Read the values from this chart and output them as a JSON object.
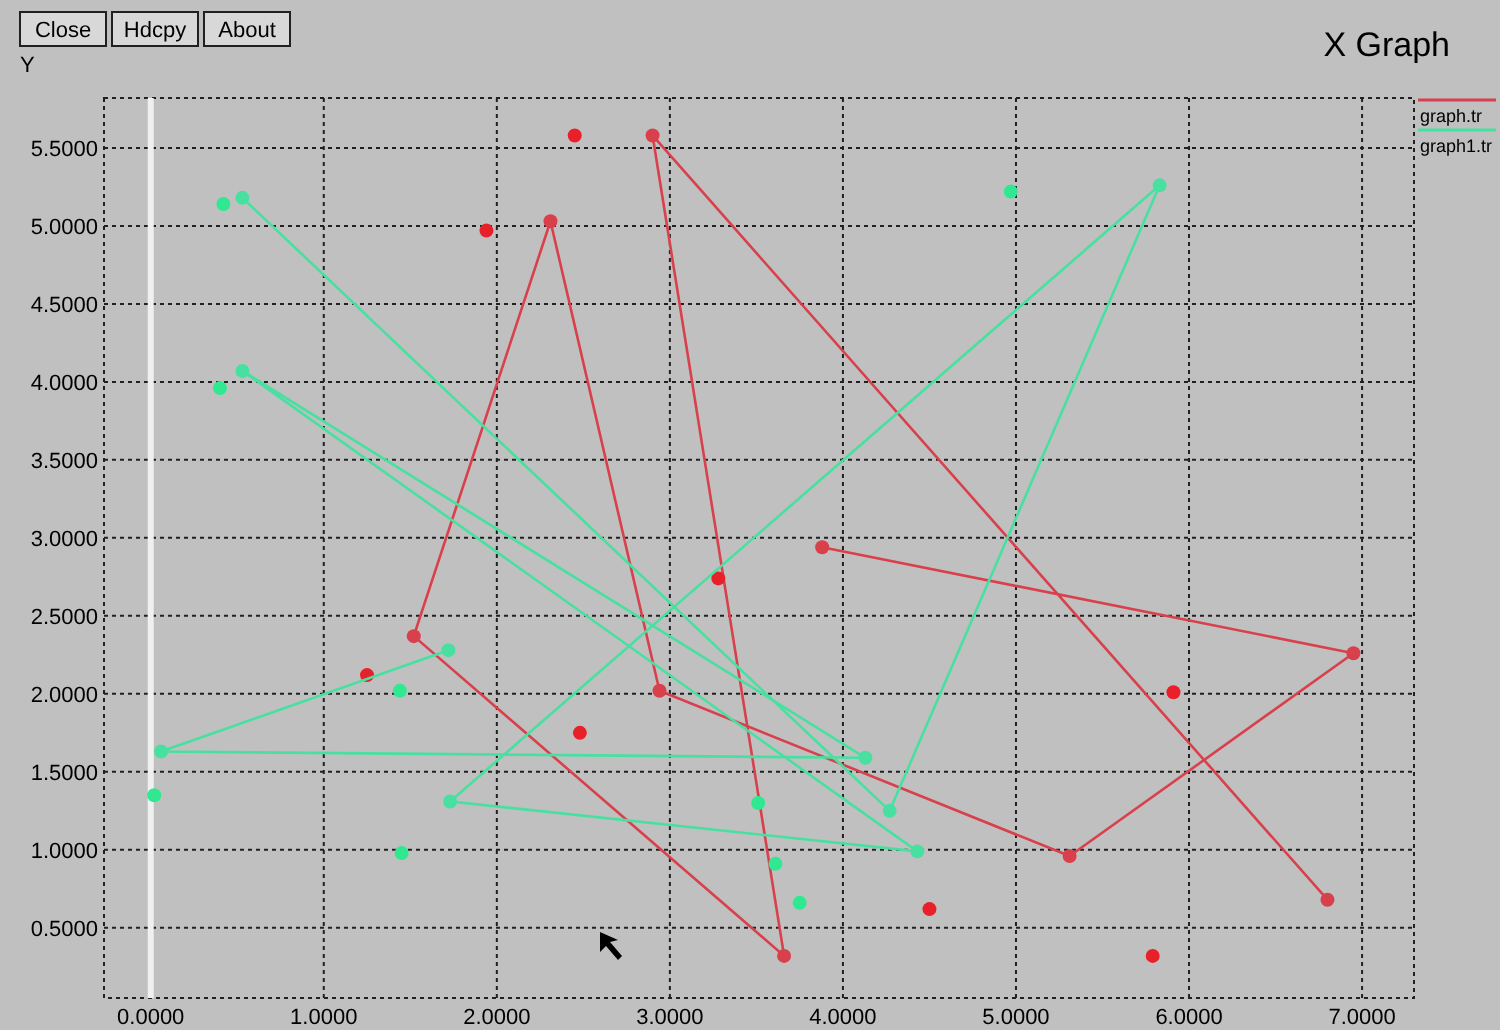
{
  "chart_data": {
    "type": "line",
    "title": "X Graph",
    "ylabel": "Y",
    "annotations": [
      "Close",
      "Hdcpy",
      "About"
    ],
    "xlim": [
      -0.27,
      7.3
    ],
    "ylim": [
      0.05,
      5.82
    ],
    "xticks": [
      {
        "value": 0,
        "label": "0.0000"
      },
      {
        "value": 1,
        "label": "1.0000"
      },
      {
        "value": 2,
        "label": "2.0000"
      },
      {
        "value": 3,
        "label": "3.0000"
      },
      {
        "value": 4,
        "label": "4.0000"
      },
      {
        "value": 5,
        "label": "5.0000"
      },
      {
        "value": 6,
        "label": "6.0000"
      },
      {
        "value": 7,
        "label": "7.0000"
      }
    ],
    "yticks": [
      {
        "value": 0.5,
        "label": "0.5000"
      },
      {
        "value": 1,
        "label": "1.0000"
      },
      {
        "value": 1.5,
        "label": "1.5000"
      },
      {
        "value": 2,
        "label": "2.0000"
      },
      {
        "value": 2.5,
        "label": "2.5000"
      },
      {
        "value": 3,
        "label": "3.0000"
      },
      {
        "value": 3.5,
        "label": "3.5000"
      },
      {
        "value": 4,
        "label": "4.0000"
      },
      {
        "value": 4.5,
        "label": "4.5000"
      },
      {
        "value": 5,
        "label": "5.0000"
      },
      {
        "value": 5.5,
        "label": "5.5000"
      }
    ],
    "grid": true,
    "legend": "top right",
    "marker": "circle",
    "ref_lines": [
      {
        "axis": "x",
        "value": 0,
        "color": "#f0f0f0"
      }
    ],
    "series": [
      {
        "name": "graph.tr",
        "color": "#d8404c",
        "x": [
          3.88,
          6.95,
          5.31,
          2.94,
          2.31,
          1.52,
          3.66,
          2.9,
          6.8
        ],
        "values": [
          2.94,
          2.26,
          0.96,
          2.02,
          5.03,
          2.37,
          0.32,
          5.58,
          0.68
        ]
      },
      {
        "type": "scatter",
        "color": "#e8202a",
        "x": [
          2.45,
          1.94,
          1.25,
          2.48,
          3.28,
          4.5,
          5.79,
          5.91
        ],
        "values": [
          5.58,
          4.97,
          2.12,
          1.75,
          2.74,
          0.62,
          0.32,
          2.01
        ]
      },
      {
        "name": "graph1.tr",
        "color": "#48e0a0",
        "x": [
          1.72,
          0.06,
          4.13,
          0.53,
          4.43,
          1.73,
          5.83,
          4.27,
          0.53
        ],
        "values": [
          2.28,
          1.63,
          1.59,
          4.07,
          0.99,
          1.31,
          5.26,
          1.25,
          5.18
        ]
      },
      {
        "type": "scatter",
        "color": "#30e890",
        "x": [
          0.42,
          0.4,
          4.97,
          0.02,
          1.44,
          1.45,
          3.51,
          3.61,
          3.75
        ],
        "values": [
          5.14,
          3.96,
          5.22,
          1.35,
          2.02,
          0.98,
          1.3,
          0.91,
          0.66
        ]
      }
    ]
  }
}
